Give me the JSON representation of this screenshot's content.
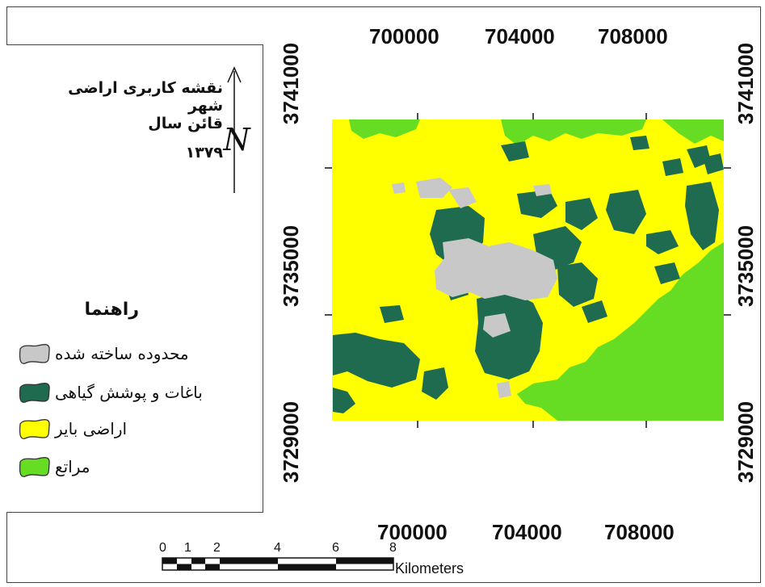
{
  "map": {
    "title_lines": [
      "نقشه کاربری اراضی شهر",
      "قائن سال",
      "۱۳۷۹"
    ],
    "north_symbol": "N",
    "legend": {
      "heading": "راهنما",
      "items": [
        {
          "label": "محدوده ساخته شده",
          "color": "#c8c8c8"
        },
        {
          "label": "باغات و پوشش گیاهی",
          "color": "#1e6b4f"
        },
        {
          "label": "اراضی بایر",
          "color": "#ffff00"
        },
        {
          "label": "مراتع",
          "color": "#66dd22"
        }
      ]
    },
    "colors": {
      "built_up": "#c8c8c8",
      "vegetation": "#1e6b4f",
      "barren": "#ffff00",
      "rangeland": "#66dd22"
    },
    "grid": {
      "x_labels": [
        "700000",
        "704000",
        "708000"
      ],
      "y_labels": [
        "3741000",
        "3735000",
        "3729000"
      ]
    },
    "scale_bar": {
      "ticks": [
        "0",
        "1",
        "2",
        "4",
        "6",
        "8"
      ],
      "unit": "Kilometers"
    }
  }
}
